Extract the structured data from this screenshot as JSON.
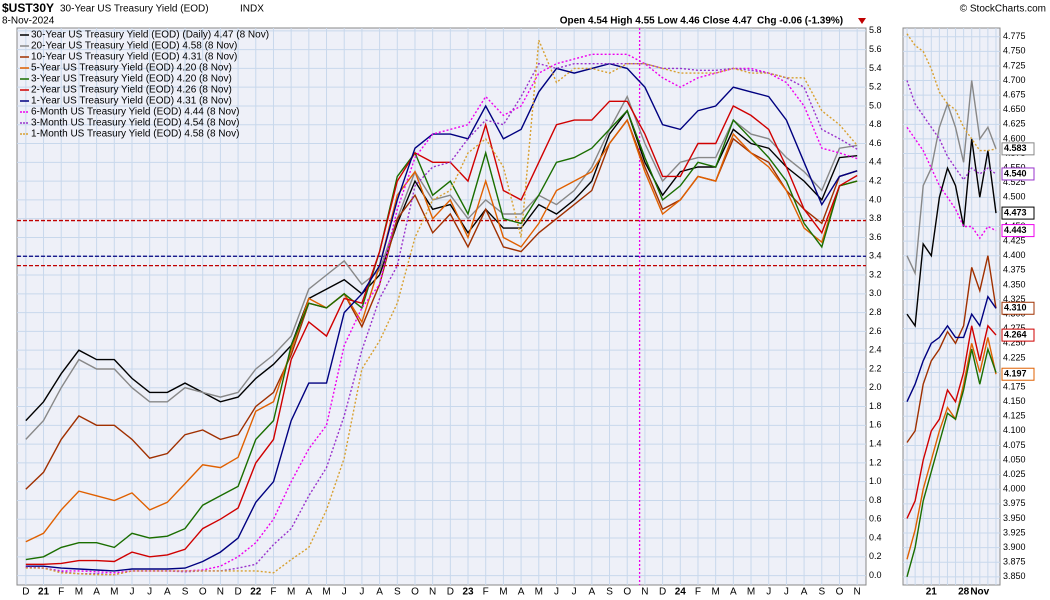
{
  "chart_data": [
    {
      "type": "line",
      "symbol": "$UST30Y",
      "title": "30-Year US Treasury Yield (EOD)",
      "exchange": "INDX",
      "date": "8-Nov-2024",
      "ohlc": "Open 4.54  High 4.55  Low 4.46  Close 4.47",
      "change": "Chg -0.06 (-1.39%)",
      "credit": "© StockCharts.com",
      "categories": [
        "D",
        "21",
        "F",
        "M",
        "A",
        "M",
        "J",
        "J",
        "A",
        "S",
        "O",
        "N",
        "D",
        "22",
        "F",
        "M",
        "A",
        "M",
        "J",
        "J",
        "A",
        "S",
        "O",
        "N",
        "D",
        "23",
        "F",
        "M",
        "A",
        "M",
        "J",
        "J",
        "A",
        "S",
        "O",
        "N",
        "D",
        "24",
        "F",
        "M",
        "A",
        "M",
        "J",
        "J",
        "A",
        "S",
        "O",
        "N"
      ],
      "ylim": [
        -0.1,
        5.83
      ],
      "yticks": [
        {
          "value": 0,
          "label": "0.0"
        },
        0.2,
        0.4,
        0.6,
        0.8,
        {
          "value": 1,
          "label": "1.0"
        },
        1.2,
        1.4,
        1.6,
        1.8,
        {
          "value": 2,
          "label": "2.0"
        },
        2.2,
        2.4,
        2.6,
        2.8,
        {
          "value": 3,
          "label": "3.0"
        },
        3.2,
        3.4,
        3.6,
        3.8,
        {
          "value": 4,
          "label": "4.0"
        },
        4.2,
        4.4,
        4.6,
        4.8,
        {
          "value": 5,
          "label": "5.0"
        },
        5.2,
        5.4,
        5.6,
        5.8
      ],
      "grid": true,
      "reference_lines": [
        {
          "value": 3.78,
          "color": "#c00000"
        },
        {
          "value": 3.4,
          "color": "#000080"
        },
        {
          "value": 3.3,
          "color": "#c00000"
        }
      ],
      "vline_at": 34.7,
      "vline_color": "#ee00ee",
      "series": [
        {
          "name": "30-Year US Treasury Yield (EOD) (Daily) 4.47 (8 Nov)",
          "color": "#000000",
          "style": "solid",
          "values": [
            1.65,
            1.85,
            2.15,
            2.4,
            2.3,
            2.3,
            2.1,
            1.95,
            1.95,
            2.05,
            1.95,
            1.85,
            1.9,
            2.1,
            2.25,
            2.45,
            2.95,
            3.05,
            3.15,
            3.0,
            3.2,
            3.75,
            4.2,
            3.9,
            3.95,
            3.65,
            3.9,
            3.7,
            3.7,
            3.95,
            3.85,
            4.0,
            4.2,
            4.7,
            4.95,
            4.4,
            4.05,
            4.3,
            4.35,
            4.35,
            4.75,
            4.6,
            4.55,
            4.35,
            4.2,
            4.0,
            4.45,
            4.47
          ]
        },
        {
          "name": "20-Year US Treasury Yield (EOD) 4.58 (8 Nov)",
          "color": "#888888",
          "style": "solid",
          "values": [
            1.45,
            1.65,
            2.0,
            2.3,
            2.2,
            2.2,
            2.0,
            1.85,
            1.85,
            2.0,
            1.95,
            1.9,
            1.95,
            2.2,
            2.35,
            2.55,
            3.05,
            3.2,
            3.35,
            3.1,
            3.25,
            3.8,
            4.3,
            4.0,
            4.05,
            3.8,
            4.0,
            3.85,
            3.85,
            4.05,
            3.95,
            4.1,
            4.35,
            4.75,
            5.1,
            4.6,
            4.2,
            4.4,
            4.45,
            4.45,
            4.85,
            4.7,
            4.65,
            4.45,
            4.3,
            4.1,
            4.55,
            4.58
          ]
        },
        {
          "name": "10-Year US Treasury Yield (EOD) 4.31 (8 Nov)",
          "color": "#a03000",
          "style": "solid",
          "values": [
            0.92,
            1.1,
            1.45,
            1.7,
            1.6,
            1.6,
            1.45,
            1.25,
            1.3,
            1.5,
            1.55,
            1.45,
            1.5,
            1.8,
            1.95,
            2.35,
            2.9,
            2.85,
            3.0,
            2.65,
            3.1,
            3.8,
            4.05,
            3.65,
            3.85,
            3.5,
            3.9,
            3.5,
            3.45,
            3.65,
            3.8,
            3.95,
            4.1,
            4.6,
            4.85,
            4.35,
            3.9,
            4.0,
            4.25,
            4.2,
            4.65,
            4.5,
            4.4,
            4.1,
            3.9,
            3.75,
            4.25,
            4.31
          ]
        },
        {
          "name": "5-Year US Treasury Yield (EOD) 4.20 (8 Nov)",
          "color": "#e06000",
          "style": "solid",
          "values": [
            0.36,
            0.45,
            0.7,
            0.9,
            0.85,
            0.8,
            0.88,
            0.7,
            0.78,
            0.98,
            1.18,
            1.15,
            1.26,
            1.75,
            1.85,
            2.4,
            2.95,
            2.85,
            3.0,
            2.7,
            3.3,
            4.05,
            4.3,
            3.8,
            4.0,
            3.6,
            4.2,
            3.6,
            3.5,
            3.75,
            4.1,
            4.2,
            4.3,
            4.6,
            4.85,
            4.3,
            3.85,
            4.0,
            4.25,
            4.2,
            4.7,
            4.5,
            4.35,
            4.1,
            3.7,
            3.55,
            4.15,
            4.2
          ]
        },
        {
          "name": "3-Year US Treasury Yield (EOD) 4.20 (8 Nov)",
          "color": "#1a6e00",
          "style": "solid",
          "values": [
            0.17,
            0.2,
            0.3,
            0.35,
            0.35,
            0.3,
            0.45,
            0.4,
            0.42,
            0.5,
            0.75,
            0.85,
            0.95,
            1.45,
            1.65,
            2.45,
            2.9,
            2.85,
            3.0,
            2.85,
            3.45,
            4.25,
            4.5,
            4.05,
            4.2,
            3.85,
            4.5,
            3.8,
            3.75,
            4.05,
            4.4,
            4.45,
            4.55,
            4.75,
            4.95,
            4.45,
            4.0,
            4.15,
            4.4,
            4.35,
            4.85,
            4.65,
            4.45,
            4.2,
            3.75,
            3.5,
            4.15,
            4.2
          ]
        },
        {
          "name": "2-Year US Treasury Yield (EOD) 4.26 (8 Nov)",
          "color": "#d00000",
          "style": "solid",
          "values": [
            0.12,
            0.12,
            0.13,
            0.16,
            0.16,
            0.15,
            0.25,
            0.2,
            0.22,
            0.28,
            0.5,
            0.6,
            0.72,
            1.2,
            1.45,
            2.3,
            2.7,
            2.55,
            2.95,
            2.9,
            3.45,
            4.2,
            4.5,
            4.4,
            4.4,
            4.2,
            4.8,
            4.1,
            4.0,
            4.4,
            4.8,
            4.85,
            4.85,
            5.05,
            5.05,
            4.7,
            4.25,
            4.25,
            4.6,
            4.6,
            5.0,
            4.9,
            4.75,
            4.35,
            3.9,
            3.65,
            4.15,
            4.26
          ]
        },
        {
          "name": "1-Year US Treasury Yield (EOD) 4.31 (8 Nov)",
          "color": "#000080",
          "style": "solid",
          "values": [
            0.1,
            0.1,
            0.08,
            0.07,
            0.06,
            0.05,
            0.07,
            0.07,
            0.07,
            0.08,
            0.15,
            0.25,
            0.4,
            0.78,
            1.0,
            1.65,
            2.05,
            2.05,
            2.8,
            3.0,
            3.3,
            4.0,
            4.55,
            4.7,
            4.7,
            4.65,
            5.0,
            4.65,
            4.75,
            5.15,
            5.4,
            5.35,
            5.4,
            5.45,
            5.4,
            5.2,
            4.8,
            4.75,
            4.95,
            5.0,
            5.2,
            5.15,
            5.1,
            4.85,
            4.4,
            3.95,
            4.25,
            4.31
          ]
        },
        {
          "name": "6-Month US Treasury Yield (EOD) 4.44 (8 Nov)",
          "color": "#ee00ee",
          "style": "dotted",
          "values": [
            0.09,
            0.08,
            0.05,
            0.05,
            0.04,
            0.03,
            0.05,
            0.05,
            0.05,
            0.05,
            0.06,
            0.1,
            0.2,
            0.35,
            0.6,
            1.0,
            1.35,
            1.6,
            2.45,
            2.85,
            3.1,
            3.9,
            4.45,
            4.7,
            4.75,
            4.8,
            5.1,
            4.9,
            5.0,
            5.35,
            5.45,
            5.5,
            5.55,
            5.55,
            5.55,
            5.45,
            5.3,
            5.2,
            5.3,
            5.35,
            5.4,
            5.4,
            5.35,
            5.25,
            5.0,
            4.55,
            4.5,
            4.44
          ]
        },
        {
          "name": "3-Month US Treasury Yield (EOD) 4.54 (8 Nov)",
          "color": "#9933cc",
          "style": "dotted",
          "values": [
            0.09,
            0.08,
            0.04,
            0.02,
            0.02,
            0.01,
            0.05,
            0.05,
            0.05,
            0.04,
            0.05,
            0.05,
            0.08,
            0.12,
            0.33,
            0.5,
            0.85,
            1.15,
            1.7,
            2.4,
            2.95,
            3.3,
            4.15,
            4.35,
            4.4,
            4.65,
            4.85,
            4.8,
            5.1,
            5.45,
            5.4,
            5.45,
            5.45,
            5.45,
            5.45,
            5.45,
            5.4,
            5.4,
            5.38,
            5.38,
            5.4,
            5.38,
            5.35,
            5.3,
            5.2,
            4.75,
            4.65,
            4.54
          ]
        },
        {
          "name": "1-Month US Treasury Yield (EOD) 4.58 (8 Nov)",
          "color": "#d8a030",
          "style": "dotted",
          "values": [
            0.08,
            0.08,
            0.03,
            0.02,
            0.01,
            0.01,
            0.05,
            0.05,
            0.05,
            0.05,
            0.05,
            0.05,
            0.05,
            0.05,
            0.03,
            0.17,
            0.3,
            0.7,
            1.25,
            2.2,
            2.5,
            2.9,
            3.6,
            4.0,
            4.1,
            4.5,
            4.65,
            4.35,
            3.6,
            5.7,
            5.25,
            5.4,
            5.4,
            5.35,
            5.45,
            5.45,
            5.4,
            5.35,
            5.35,
            5.35,
            5.4,
            5.35,
            5.35,
            5.3,
            5.3,
            4.95,
            4.8,
            4.58
          ]
        }
      ]
    },
    {
      "type": "line",
      "categories": [
        null,
        null,
        null,
        "21",
        null,
        null,
        null,
        "28",
        null,
        "Nov",
        null,
        null
      ],
      "ylim": [
        3.836,
        4.79
      ],
      "yticks": [
        {
          "value": 3.85,
          "label": "3.850"
        },
        3.875,
        {
          "value": 3.9,
          "label": "3.900"
        },
        3.925,
        {
          "value": 3.95,
          "label": "3.950"
        },
        3.975,
        {
          "value": 4,
          "label": "4.000"
        },
        4.025,
        {
          "value": 4.05,
          "label": "4.050"
        },
        4.075,
        {
          "value": 4.1,
          "label": "4.100"
        },
        4.125,
        {
          "value": 4.15,
          "label": "4.150"
        },
        4.175,
        {
          "value": 4.2,
          "label": "4.200"
        },
        4.225,
        {
          "value": 4.25,
          "label": "4.250"
        },
        4.275,
        {
          "value": 4.3,
          "label": "4.300"
        },
        4.325,
        {
          "value": 4.35,
          "label": "4.350"
        },
        4.375,
        {
          "value": 4.4,
          "label": "4.400"
        },
        4.425,
        {
          "value": 4.45,
          "label": "4.450"
        },
        4.475,
        {
          "value": 4.5,
          "label": "4.500"
        },
        4.525,
        {
          "value": 4.55,
          "label": "4.550"
        },
        4.575,
        {
          "value": 4.6,
          "label": "4.600"
        },
        4.625,
        {
          "value": 4.65,
          "label": "4.650"
        },
        4.675,
        {
          "value": 4.7,
          "label": "4.700"
        },
        4.725,
        {
          "value": 4.75,
          "label": "4.750"
        },
        4.775
      ],
      "grid": true,
      "series": [
        {
          "color": "#000000",
          "style": "solid",
          "values": [
            4.3,
            4.28,
            4.42,
            4.4,
            4.5,
            4.55,
            4.52,
            4.45,
            4.6,
            4.5,
            4.58,
            4.473
          ],
          "last_label": "4.473"
        },
        {
          "color": "#888888",
          "style": "solid",
          "values": [
            4.4,
            4.37,
            4.52,
            4.55,
            4.62,
            4.66,
            4.62,
            4.56,
            4.7,
            4.6,
            4.62,
            4.583
          ],
          "last_label": "4.583"
        },
        {
          "color": "#a03000",
          "style": "solid",
          "values": [
            4.08,
            4.1,
            4.18,
            4.22,
            4.24,
            4.27,
            4.25,
            4.28,
            4.38,
            4.34,
            4.4,
            4.31
          ],
          "last_label": "4.310"
        },
        {
          "color": "#e06000",
          "style": "solid",
          "values": [
            3.88,
            3.93,
            4.0,
            4.05,
            4.1,
            4.14,
            4.12,
            4.18,
            4.25,
            4.2,
            4.26,
            4.197
          ],
          "last_label": "4.197"
        },
        {
          "color": "#1a6e00",
          "style": "solid",
          "values": [
            3.85,
            3.9,
            3.98,
            4.03,
            4.08,
            4.13,
            4.12,
            4.17,
            4.24,
            4.18,
            4.24,
            4.2
          ]
        },
        {
          "color": "#d00000",
          "style": "solid",
          "values": [
            3.95,
            3.98,
            4.05,
            4.1,
            4.12,
            4.17,
            4.15,
            4.2,
            4.28,
            4.22,
            4.28,
            4.264
          ],
          "last_label": "4.264"
        },
        {
          "color": "#000080",
          "style": "solid",
          "values": [
            4.15,
            4.18,
            4.22,
            4.25,
            4.26,
            4.28,
            4.26,
            4.26,
            4.3,
            4.28,
            4.33,
            4.31
          ]
        },
        {
          "color": "#ee00ee",
          "style": "dotted",
          "values": [
            4.62,
            4.6,
            4.58,
            4.55,
            4.52,
            4.5,
            4.48,
            4.45,
            4.45,
            4.43,
            4.45,
            4.443
          ],
          "last_label": "4.443"
        },
        {
          "color": "#9933cc",
          "style": "dotted",
          "values": [
            4.7,
            4.66,
            4.64,
            4.62,
            4.6,
            4.57,
            4.55,
            4.53,
            4.55,
            4.54,
            4.55,
            4.54
          ],
          "last_label": "4.540"
        },
        {
          "color": "#d8a030",
          "style": "dotted",
          "values": [
            4.78,
            4.76,
            4.75,
            4.72,
            4.68,
            4.66,
            4.65,
            4.62,
            4.6,
            4.58,
            4.58,
            4.583
          ]
        }
      ]
    }
  ]
}
